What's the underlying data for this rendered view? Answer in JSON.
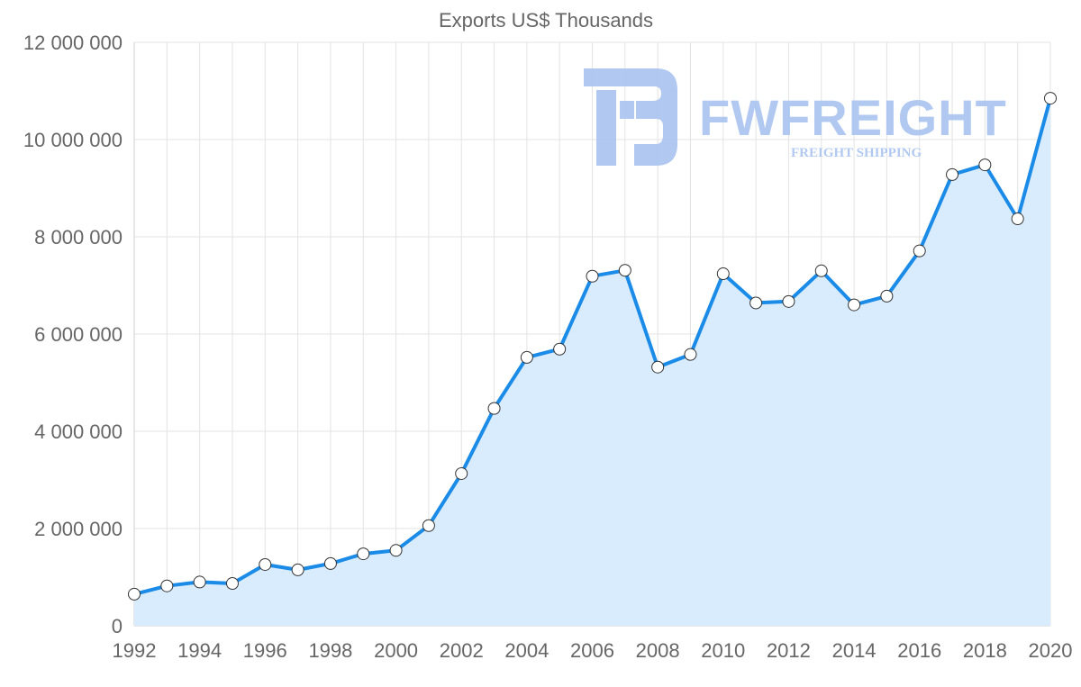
{
  "chart_data": {
    "type": "line",
    "title": "Exports US$ Thousands",
    "xlabel": "",
    "ylabel": "",
    "x": [
      1992,
      1993,
      1994,
      1995,
      1996,
      1997,
      1998,
      1999,
      2000,
      2001,
      2002,
      2003,
      2004,
      2005,
      2006,
      2007,
      2008,
      2009,
      2010,
      2011,
      2012,
      2013,
      2014,
      2015,
      2016,
      2017,
      2018,
      2019,
      2020
    ],
    "series": [
      {
        "name": "Exports US$ Thousands",
        "values": [
          650000,
          820000,
          900000,
          870000,
          1260000,
          1150000,
          1280000,
          1480000,
          1550000,
          2060000,
          3130000,
          4470000,
          5520000,
          5690000,
          7190000,
          7310000,
          5320000,
          5580000,
          7240000,
          6640000,
          6670000,
          7300000,
          6600000,
          6780000,
          7710000,
          9280000,
          9480000,
          8370000,
          10850000
        ],
        "line_color": "#1b8be8",
        "fill_color": "#d9ecfd",
        "point_fill": "#ffffff",
        "point_stroke": "#333333"
      }
    ],
    "ylim": [
      0,
      12000000
    ],
    "y_ticks": [
      0,
      2000000,
      4000000,
      6000000,
      8000000,
      10000000,
      12000000
    ],
    "y_tick_labels": [
      "0",
      "2 000 000",
      "4 000 000",
      "6 000 000",
      "8 000 000",
      "10 000 000",
      "12 000 000"
    ],
    "x_tick_labels": [
      "1992",
      "1994",
      "1996",
      "1998",
      "2000",
      "2002",
      "2004",
      "2006",
      "2008",
      "2010",
      "2012",
      "2014",
      "2016",
      "2018",
      "2020"
    ],
    "grid": true,
    "legend": "none"
  },
  "watermark": {
    "brand": "FWFREIGHT",
    "tagline": "FREIGHT SHIPPING",
    "color": "#a9c4f0"
  }
}
